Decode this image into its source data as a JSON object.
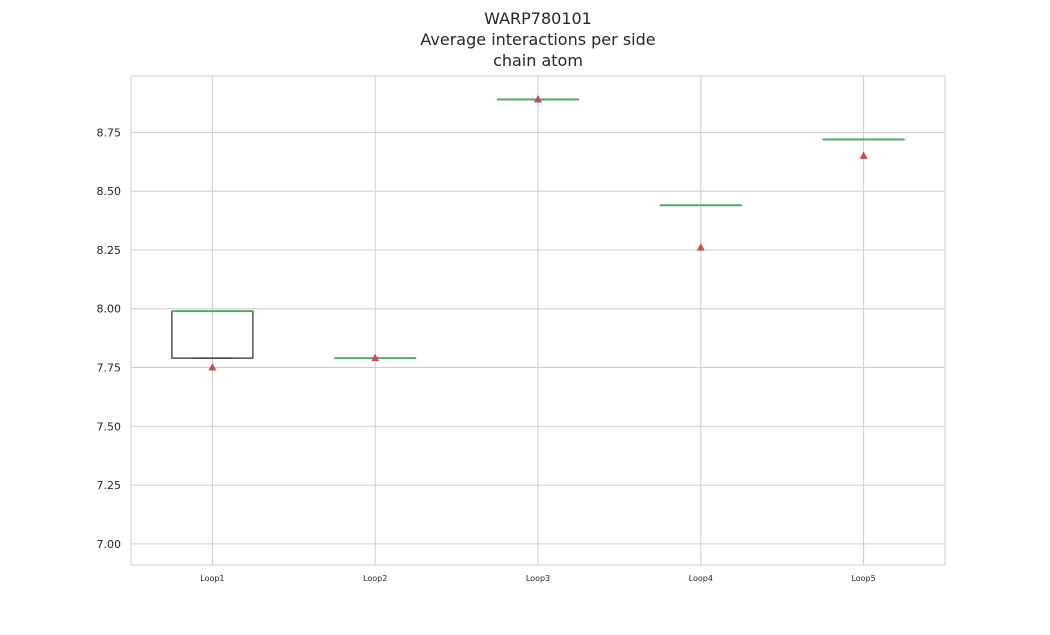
{
  "chart_data": {
    "type": "box",
    "title_lines": [
      "WARP780101",
      "Average interactions per side",
      "chain atom"
    ],
    "categories": [
      "Loop1",
      "Loop2",
      "Loop3",
      "Loop4",
      "Loop5"
    ],
    "boxes": [
      {
        "q1": 7.79,
        "median": 7.99,
        "q3": 7.99,
        "whisker_low": 7.79,
        "whisker_high": 7.99,
        "mean": 7.75
      },
      {
        "q1": 7.79,
        "median": 7.79,
        "q3": 7.79,
        "whisker_low": 7.79,
        "whisker_high": 7.79,
        "mean": 7.79
      },
      {
        "q1": 8.89,
        "median": 8.89,
        "q3": 8.89,
        "whisker_low": 8.89,
        "whisker_high": 8.89,
        "mean": 8.89
      },
      {
        "q1": 8.44,
        "median": 8.44,
        "q3": 8.44,
        "whisker_low": 8.44,
        "whisker_high": 8.44,
        "mean": 8.26
      },
      {
        "q1": 8.72,
        "median": 8.72,
        "q3": 8.72,
        "whisker_low": 8.72,
        "whisker_high": 8.72,
        "mean": 8.65
      }
    ],
    "ylim": [
      6.91,
      8.99
    ],
    "yticks": [
      "7.00",
      "7.25",
      "7.50",
      "7.75",
      "8.00",
      "8.25",
      "8.50",
      "8.75"
    ],
    "grid": true,
    "colors": {
      "median": "#55a868",
      "mean": "#c44e52",
      "box": "#000000",
      "grid": "#cccccc"
    }
  }
}
